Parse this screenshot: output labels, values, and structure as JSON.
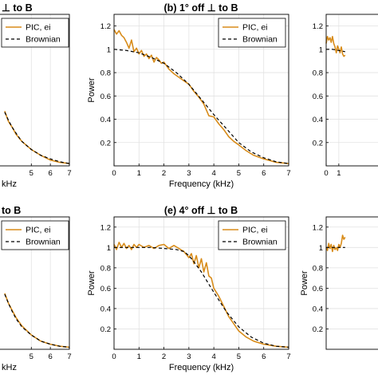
{
  "chart_data": [
    {
      "type": "line",
      "panel": "top-left",
      "title": "⊥ to B",
      "xlabel": "kHz",
      "ylabel": "",
      "xticks": [
        5,
        6,
        7
      ],
      "yticks": [],
      "xlim": [
        0,
        7
      ],
      "ylim": [
        0,
        1.3
      ],
      "grid": true,
      "legend": {
        "placement": "top-left",
        "entries": [
          "PIC, ei",
          "Brownian"
        ]
      },
      "series": [
        {
          "name": "PIC, ei",
          "color": "#d88c1a",
          "style": "solid",
          "x": [
            3.6,
            3.8,
            4.0,
            4.2,
            4.5,
            5.0,
            5.5,
            6.0,
            6.5,
            7.0
          ],
          "y": [
            0.47,
            0.38,
            0.33,
            0.27,
            0.21,
            0.14,
            0.09,
            0.05,
            0.03,
            0.02
          ]
        },
        {
          "name": "Brownian",
          "color": "#000000",
          "style": "dashed",
          "x": [
            3.6,
            3.8,
            4.0,
            4.2,
            4.5,
            5.0,
            5.5,
            6.0,
            6.5,
            7.0
          ],
          "y": [
            0.46,
            0.39,
            0.33,
            0.28,
            0.21,
            0.14,
            0.09,
            0.06,
            0.035,
            0.02
          ]
        }
      ]
    },
    {
      "type": "line",
      "panel": "top-center",
      "title": "(b) 1° off ⊥ to B",
      "xlabel": "Frequency (kHz)",
      "ylabel": "Power",
      "xticks": [
        0,
        1,
        2,
        3,
        4,
        5,
        6,
        7
      ],
      "yticks": [
        0.2,
        0.4,
        0.6,
        0.8,
        1,
        1.2
      ],
      "xlim": [
        0,
        7
      ],
      "ylim": [
        0,
        1.3
      ],
      "grid": true,
      "legend": {
        "placement": "top-right",
        "entries": [
          "PIC, ei",
          "Brownian"
        ]
      },
      "series": [
        {
          "name": "PIC, ei",
          "color": "#d88c1a",
          "style": "solid",
          "x": [
            0,
            0.1,
            0.2,
            0.3,
            0.4,
            0.5,
            0.6,
            0.7,
            0.8,
            0.9,
            1.0,
            1.1,
            1.2,
            1.3,
            1.4,
            1.5,
            1.6,
            1.7,
            1.8,
            1.9,
            2.0,
            2.2,
            2.4,
            2.6,
            2.8,
            3.0,
            3.2,
            3.4,
            3.6,
            3.8,
            4.0,
            4.2,
            4.4,
            4.6,
            4.8,
            5.0,
            5.3,
            5.6,
            6.0,
            6.5,
            7.0
          ],
          "y": [
            1.17,
            1.13,
            1.16,
            1.12,
            1.1,
            1.06,
            1.01,
            1.08,
            0.98,
            1.01,
            0.96,
            0.99,
            0.94,
            0.96,
            0.92,
            0.95,
            0.89,
            0.93,
            0.91,
            0.88,
            0.89,
            0.83,
            0.79,
            0.76,
            0.73,
            0.7,
            0.64,
            0.59,
            0.53,
            0.43,
            0.42,
            0.36,
            0.31,
            0.25,
            0.21,
            0.18,
            0.13,
            0.09,
            0.06,
            0.03,
            0.02
          ]
        },
        {
          "name": "Brownian",
          "color": "#000000",
          "style": "dashed",
          "x": [
            0,
            0.5,
            1.0,
            1.5,
            2.0,
            2.5,
            3.0,
            3.5,
            4.0,
            4.5,
            5.0,
            5.5,
            6.0,
            6.5,
            7.0
          ],
          "y": [
            1.0,
            0.99,
            0.97,
            0.93,
            0.88,
            0.8,
            0.7,
            0.57,
            0.44,
            0.32,
            0.2,
            0.12,
            0.07,
            0.035,
            0.02
          ]
        }
      ]
    },
    {
      "type": "line",
      "panel": "top-right",
      "title": "",
      "xlabel": "",
      "ylabel": "",
      "xticks": [
        0,
        1
      ],
      "yticks": [
        0.2,
        0.4,
        0.6,
        0.8,
        1,
        1.2
      ],
      "xlim": [
        0,
        7
      ],
      "ylim": [
        0,
        1.3
      ],
      "grid": true,
      "legend": null,
      "series": [
        {
          "name": "PIC, ei",
          "color": "#d88c1a",
          "style": "solid",
          "x": [
            0,
            0.1,
            0.2,
            0.3,
            0.4,
            0.5,
            0.6,
            0.7,
            0.8,
            0.9,
            1.0,
            1.1,
            1.2,
            1.3,
            1.4,
            1.5
          ],
          "y": [
            1.05,
            1.11,
            1.08,
            1.1,
            1.06,
            1.11,
            1.05,
            1.02,
            0.97,
            1.03,
            1.0,
            0.97,
            1.02,
            0.96,
            0.94,
            0.95
          ]
        },
        {
          "name": "Brownian",
          "color": "#000000",
          "style": "dashed",
          "x": [
            0,
            0.5,
            1.0,
            1.5
          ],
          "y": [
            1.0,
            1.0,
            0.99,
            0.98
          ]
        }
      ]
    },
    {
      "type": "line",
      "panel": "bottom-left",
      "title": "to B",
      "xlabel": "kHz",
      "ylabel": "",
      "xticks": [
        5,
        6,
        7
      ],
      "yticks": [],
      "xlim": [
        0,
        7
      ],
      "ylim": [
        0,
        1.3
      ],
      "grid": true,
      "legend": {
        "placement": "top-left",
        "entries": [
          "PIC, ei",
          "Brownian"
        ]
      },
      "series": [
        {
          "name": "PIC, ei",
          "color": "#d88c1a",
          "style": "solid",
          "x": [
            3.6,
            3.8,
            4.0,
            4.2,
            4.5,
            5.0,
            5.5,
            6.0,
            6.5,
            7.0
          ],
          "y": [
            0.55,
            0.45,
            0.38,
            0.31,
            0.23,
            0.14,
            0.08,
            0.05,
            0.03,
            0.02
          ]
        },
        {
          "name": "Brownian",
          "color": "#000000",
          "style": "dashed",
          "x": [
            3.6,
            3.8,
            4.0,
            4.2,
            4.5,
            5.0,
            5.5,
            6.0,
            6.5,
            7.0
          ],
          "y": [
            0.54,
            0.45,
            0.37,
            0.3,
            0.22,
            0.14,
            0.08,
            0.05,
            0.03,
            0.02
          ]
        }
      ]
    },
    {
      "type": "line",
      "panel": "bottom-center",
      "title": "(e) 4° off ⊥ to B",
      "xlabel": "Frequency (kHz)",
      "ylabel": "Power",
      "xticks": [
        0,
        1,
        2,
        3,
        4,
        5,
        6,
        7
      ],
      "yticks": [
        0.2,
        0.4,
        0.6,
        0.8,
        1,
        1.2
      ],
      "xlim": [
        0,
        7
      ],
      "ylim": [
        0,
        1.3
      ],
      "grid": true,
      "legend": {
        "placement": "top-right",
        "entries": [
          "PIC, ei",
          "Brownian"
        ]
      },
      "series": [
        {
          "name": "PIC, ei",
          "color": "#d88c1a",
          "style": "solid",
          "x": [
            0,
            0.1,
            0.2,
            0.3,
            0.4,
            0.5,
            0.6,
            0.7,
            0.8,
            0.9,
            1.0,
            1.2,
            1.4,
            1.6,
            1.8,
            2.0,
            2.2,
            2.4,
            2.6,
            2.8,
            3.0,
            3.1,
            3.2,
            3.3,
            3.4,
            3.5,
            3.6,
            3.7,
            3.8,
            3.9,
            4.0,
            4.2,
            4.4,
            4.6,
            4.8,
            5.0,
            5.3,
            5.6,
            6.0,
            6.5,
            7.0
          ],
          "y": [
            1.03,
            0.98,
            1.05,
            1.0,
            1.04,
            0.99,
            1.02,
            0.98,
            1.03,
            1.0,
            1.03,
            1.0,
            1.02,
            0.99,
            1.02,
            1.03,
            0.99,
            1.02,
            0.99,
            0.96,
            0.9,
            0.94,
            0.84,
            0.92,
            0.8,
            0.89,
            0.76,
            0.85,
            0.72,
            0.7,
            0.6,
            0.52,
            0.42,
            0.32,
            0.25,
            0.18,
            0.12,
            0.08,
            0.05,
            0.03,
            0.02
          ]
        },
        {
          "name": "Brownian",
          "color": "#000000",
          "style": "dashed",
          "x": [
            0,
            0.5,
            1.0,
            1.5,
            2.0,
            2.5,
            2.8,
            3.0,
            3.2,
            3.5,
            4.0,
            4.5,
            5.0,
            5.5,
            6.0,
            6.5,
            7.0
          ],
          "y": [
            1.0,
            1.0,
            1.0,
            1.0,
            0.99,
            0.98,
            0.96,
            0.92,
            0.86,
            0.76,
            0.56,
            0.37,
            0.22,
            0.12,
            0.06,
            0.03,
            0.02
          ]
        }
      ]
    },
    {
      "type": "line",
      "panel": "bottom-right",
      "title": "",
      "xlabel": "",
      "ylabel": "Power",
      "xticks": [],
      "yticks": [
        0.2,
        0.4,
        0.6,
        0.8,
        1,
        1.2
      ],
      "xlim": [
        0,
        7
      ],
      "ylim": [
        0,
        1.3
      ],
      "grid": true,
      "legend": null,
      "series": [
        {
          "name": "PIC, ei",
          "color": "#d88c1a",
          "style": "solid",
          "x": [
            0,
            0.1,
            0.2,
            0.3,
            0.4,
            0.5,
            0.6,
            0.7,
            0.8,
            0.9,
            1.0,
            1.1,
            1.2,
            1.3,
            1.4,
            1.5
          ],
          "y": [
            1.0,
            0.97,
            1.04,
            0.99,
            1.03,
            0.96,
            1.02,
            0.98,
            1.0,
            0.97,
            1.03,
            1.0,
            1.04,
            1.12,
            1.08,
            1.1
          ]
        },
        {
          "name": "Brownian",
          "color": "#000000",
          "style": "dashed",
          "x": [
            0,
            0.5,
            1.0,
            1.5
          ],
          "y": [
            1.0,
            1.0,
            1.0,
            1.0
          ]
        }
      ]
    }
  ]
}
